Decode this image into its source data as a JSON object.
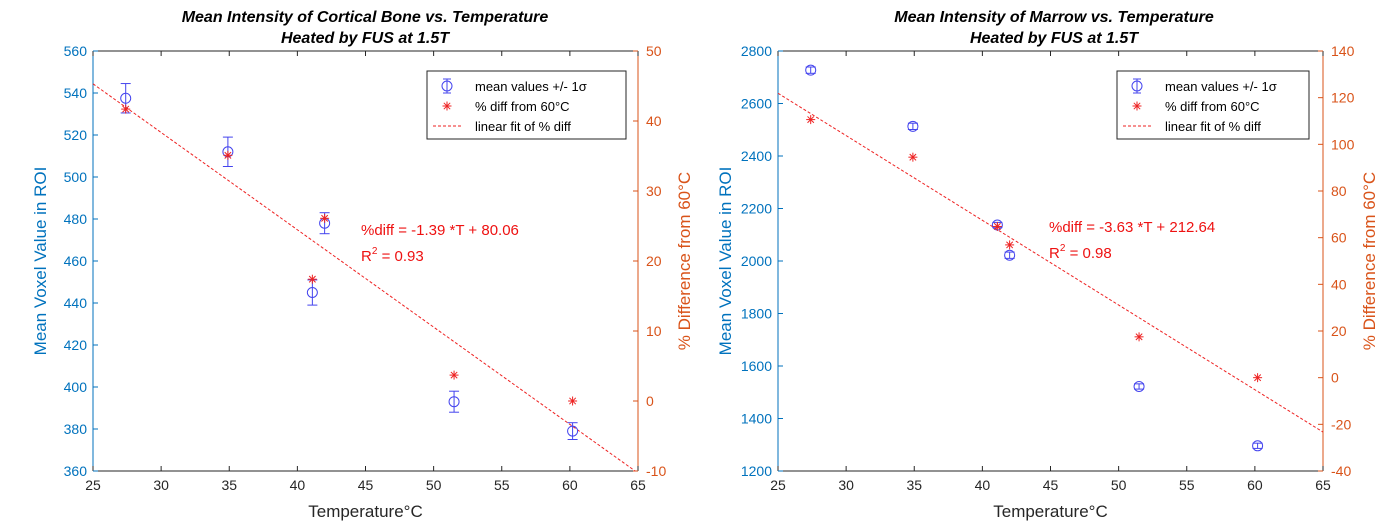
{
  "chart_data": [
    {
      "type": "scatter",
      "title": "Mean Intensity of Cortical Bone vs. Temperature",
      "subtitle": "Heated by FUS at 1.5T",
      "xlabel": "Temperature°C",
      "ylabel_left": "Mean Voxel Value in ROI",
      "ylabel_right": "% Difference from 60°C",
      "xlim": [
        25,
        65
      ],
      "xticks": [
        25,
        30,
        35,
        40,
        45,
        50,
        55,
        60,
        65
      ],
      "ylim_left": [
        360,
        560
      ],
      "yticks_left": [
        360,
        380,
        400,
        420,
        440,
        460,
        480,
        500,
        520,
        540,
        560
      ],
      "ylim_right": [
        -10,
        50
      ],
      "yticks_right": [
        -10,
        0,
        10,
        20,
        30,
        40,
        50
      ],
      "colors": {
        "left_axis": "#0072bd",
        "right_axis": "#d95319",
        "mean": "#4444ee",
        "pct": "#ee2222"
      },
      "legend": {
        "position": "top-right",
        "entries": [
          "mean values +/- 1σ",
          "% diff from 60°C",
          "linear fit of % diff"
        ]
      },
      "series": [
        {
          "name": "mean values +/- 1σ",
          "axis": "left",
          "x": [
            27.4,
            34.9,
            41.1,
            42.0,
            51.5,
            60.2
          ],
          "y": [
            537.5,
            512,
            445,
            478,
            393,
            379
          ],
          "err": [
            7,
            7,
            6,
            5,
            5,
            4
          ]
        },
        {
          "name": "% diff from 60°C",
          "axis": "right",
          "x": [
            27.4,
            34.9,
            41.1,
            42.0,
            51.5,
            60.2
          ],
          "y": [
            41.7,
            35.1,
            17.4,
            26.1,
            3.7,
            0
          ]
        },
        {
          "name": "linear fit of % diff",
          "axis": "right",
          "slope": -1.39,
          "intercept": 80.06
        }
      ],
      "annotation": {
        "equation": "%diff = -1.39 *T + 80.06",
        "r2_prefix": "R",
        "r2_sup": "2",
        "r2_suffix": " = 0.93"
      }
    },
    {
      "type": "scatter",
      "title": "Mean Intensity of Marrow vs. Temperature",
      "subtitle": "Heated by FUS at 1.5T",
      "xlabel": "Temperature°C",
      "ylabel_left": "Mean Voxel Value in ROI",
      "ylabel_right": "% Difference from 60°C",
      "xlim": [
        25,
        65
      ],
      "xticks": [
        25,
        30,
        35,
        40,
        45,
        50,
        55,
        60,
        65
      ],
      "ylim_left": [
        1200,
        2800
      ],
      "yticks_left": [
        1200,
        1400,
        1600,
        1800,
        2000,
        2200,
        2400,
        2600,
        2800
      ],
      "ylim_right": [
        -40,
        140
      ],
      "yticks_right": [
        -40,
        -20,
        0,
        20,
        40,
        60,
        80,
        100,
        120,
        140
      ],
      "colors": {
        "left_axis": "#0072bd",
        "right_axis": "#d95319",
        "mean": "#4444ee",
        "pct": "#ee2222"
      },
      "legend": {
        "position": "top-right",
        "entries": [
          "mean values +/- 1σ",
          "% diff from 60°C",
          "linear fit of % diff"
        ]
      },
      "series": [
        {
          "name": "mean values +/- 1σ",
          "axis": "left",
          "x": [
            27.4,
            34.9,
            41.1,
            42.0,
            51.5,
            60.2
          ],
          "y": [
            2727,
            2513,
            2137,
            2022,
            1522,
            1296
          ],
          "err": [
            12,
            12,
            10,
            12,
            10,
            10
          ]
        },
        {
          "name": "% diff from 60°C",
          "axis": "right",
          "x": [
            27.4,
            34.9,
            41.1,
            42.0,
            51.5,
            60.2
          ],
          "y": [
            110.6,
            94.5,
            64.8,
            56.9,
            17.5,
            0
          ]
        },
        {
          "name": "linear fit of % diff",
          "axis": "right",
          "slope": -3.63,
          "intercept": 212.64
        }
      ],
      "annotation": {
        "equation": "%diff = -3.63 *T + 212.64",
        "r2_prefix": "R",
        "r2_sup": "2",
        "r2_suffix": " = 0.98"
      }
    }
  ]
}
